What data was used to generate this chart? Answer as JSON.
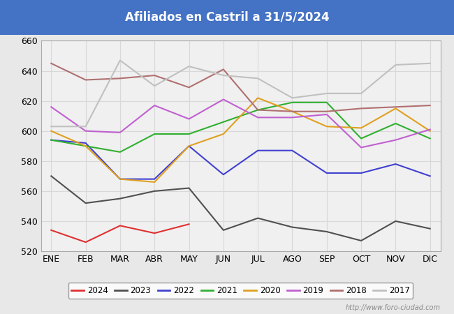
{
  "title": "Afiliados en Castril a 31/5/2024",
  "title_color": "white",
  "title_bg_color": "#4472c4",
  "months": [
    "ENE",
    "FEB",
    "MAR",
    "ABR",
    "MAY",
    "JUN",
    "JUL",
    "AGO",
    "SEP",
    "OCT",
    "NOV",
    "DIC"
  ],
  "ylim": [
    520,
    660
  ],
  "yticks": [
    520,
    540,
    560,
    580,
    600,
    620,
    640,
    660
  ],
  "series": {
    "2024": {
      "color": "#e03030",
      "data": [
        534,
        526,
        537,
        532,
        538,
        null,
        null,
        null,
        null,
        null,
        null,
        null
      ]
    },
    "2023": {
      "color": "#505050",
      "data": [
        570,
        552,
        555,
        560,
        562,
        534,
        542,
        536,
        533,
        527,
        540,
        535
      ]
    },
    "2022": {
      "color": "#4040d0",
      "data": [
        594,
        592,
        568,
        568,
        590,
        571,
        587,
        587,
        572,
        572,
        578,
        570
      ]
    },
    "2021": {
      "color": "#30b030",
      "data": [
        594,
        590,
        586,
        598,
        598,
        606,
        614,
        619,
        619,
        595,
        605,
        595
      ]
    },
    "2020": {
      "color": "#e0a020",
      "data": [
        600,
        590,
        568,
        566,
        590,
        598,
        622,
        613,
        603,
        602,
        615,
        600
      ]
    },
    "2019": {
      "color": "#c060d0",
      "data": [
        616,
        600,
        599,
        617,
        608,
        621,
        609,
        609,
        611,
        589,
        594,
        601
      ]
    },
    "2018": {
      "color": "#b07070",
      "data": [
        645,
        634,
        635,
        637,
        629,
        641,
        614,
        613,
        613,
        615,
        616,
        617
      ]
    },
    "2017": {
      "color": "#c0c0c0",
      "data": [
        603,
        603,
        647,
        630,
        643,
        637,
        635,
        622,
        625,
        625,
        644,
        645
      ]
    }
  },
  "legend_order": [
    "2024",
    "2023",
    "2022",
    "2021",
    "2020",
    "2019",
    "2018",
    "2017"
  ],
  "watermark": "http://www.foro-ciudad.com",
  "bg_color": "#e8e8e8",
  "plot_bg_color": "#f0f0f0",
  "grid_color": "#d8d8d8"
}
